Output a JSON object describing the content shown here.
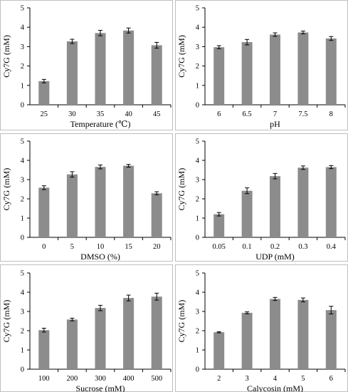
{
  "chart_data": [
    {
      "type": "bar",
      "xlabel": "Temperature (℃)",
      "ylabel": "Cy7G  (mM)",
      "categories": [
        "25",
        "30",
        "35",
        "40",
        "45"
      ],
      "values": [
        1.22,
        3.27,
        3.7,
        3.83,
        3.07
      ],
      "errors": [
        0.09,
        0.11,
        0.14,
        0.13,
        0.15
      ],
      "ylim": [
        0,
        5
      ],
      "yticks": [
        "0",
        "1",
        "2",
        "3",
        "4",
        "5"
      ],
      "color": "#8c8c8c",
      "grid": false,
      "legend": "none"
    },
    {
      "type": "bar",
      "xlabel": "pH",
      "ylabel": "Cy7G  (mM)",
      "categories": [
        "6",
        "6.5",
        "7",
        "7.5",
        "8"
      ],
      "values": [
        2.97,
        3.23,
        3.62,
        3.73,
        3.42
      ],
      "errors": [
        0.08,
        0.14,
        0.09,
        0.07,
        0.1
      ],
      "ylim": [
        0,
        5
      ],
      "yticks": [
        "0",
        "1",
        "2",
        "3",
        "4",
        "5"
      ],
      "color": "#8c8c8c",
      "grid": false,
      "legend": "none"
    },
    {
      "type": "bar",
      "xlabel": "DMSO (%)",
      "ylabel": "Cy7G  (mM)",
      "categories": [
        "0",
        "5",
        "10",
        "15",
        "20"
      ],
      "values": [
        2.58,
        3.27,
        3.66,
        3.72,
        2.29
      ],
      "errors": [
        0.1,
        0.14,
        0.1,
        0.07,
        0.08
      ],
      "ylim": [
        0,
        5
      ],
      "yticks": [
        "0",
        "1",
        "2",
        "3",
        "4",
        "5"
      ],
      "color": "#8c8c8c",
      "grid": false,
      "legend": "none"
    },
    {
      "type": "bar",
      "xlabel": "UDP (mM)",
      "ylabel": "Cy7G  (mM)",
      "categories": [
        "0.05",
        "0.1",
        "0.2",
        "0.3",
        "0.4"
      ],
      "values": [
        1.2,
        2.42,
        3.18,
        3.62,
        3.65
      ],
      "errors": [
        0.09,
        0.15,
        0.14,
        0.09,
        0.08
      ],
      "ylim": [
        0,
        5
      ],
      "yticks": [
        "0",
        "1",
        "2",
        "3",
        "4",
        "5"
      ],
      "color": "#8c8c8c",
      "grid": false,
      "legend": "none"
    },
    {
      "type": "bar",
      "xlabel": "Sucrose (mM)",
      "ylabel": "Cy7G  (mM)",
      "categories": [
        "100",
        "200",
        "300",
        "400",
        "500"
      ],
      "values": [
        2.03,
        2.58,
        3.18,
        3.7,
        3.77
      ],
      "errors": [
        0.1,
        0.07,
        0.14,
        0.15,
        0.18
      ],
      "ylim": [
        0,
        5
      ],
      "yticks": [
        "0",
        "1",
        "2",
        "3",
        "4",
        "5"
      ],
      "color": "#8c8c8c",
      "grid": false,
      "legend": "none"
    },
    {
      "type": "bar",
      "xlabel": "Calycosin (mM)",
      "ylabel": "Cy7G  (mM)",
      "categories": [
        "2",
        "3",
        "4",
        "5",
        "6"
      ],
      "values": [
        1.92,
        2.93,
        3.65,
        3.6,
        3.07
      ],
      "errors": [
        0.03,
        0.05,
        0.08,
        0.1,
        0.2
      ],
      "ylim": [
        0,
        5
      ],
      "yticks": [
        "0",
        "1",
        "2",
        "3",
        "4",
        "5"
      ],
      "color": "#8c8c8c",
      "grid": false,
      "legend": "none"
    }
  ]
}
